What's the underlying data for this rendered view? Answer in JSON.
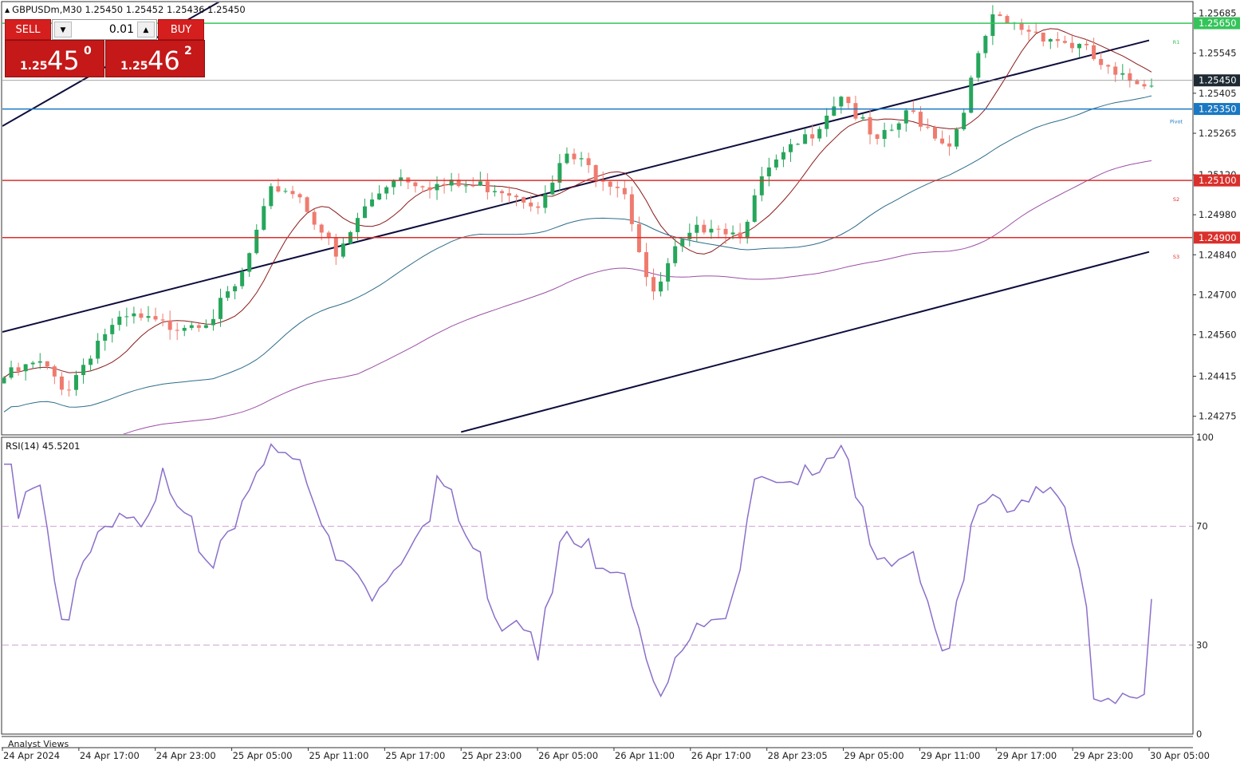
{
  "header": {
    "title": "GBPUSDm,M30  1.25450 1.25452 1.25436 1.25450"
  },
  "trade_panel": {
    "sell_label": "SELL",
    "buy_label": "BUY",
    "lot_value": "0.01",
    "sell_price": {
      "small": "1.25",
      "big": "45",
      "sup": "0"
    },
    "buy_price": {
      "small": "1.25",
      "big": "46",
      "sup": "2"
    }
  },
  "rsi_panel": {
    "label": "RSI(14) 45.5201"
  },
  "footer": {
    "analyst_label": "Analyst Views"
  },
  "colors": {
    "bull": "#26a65b",
    "bear": "#ef7b6f",
    "trend": "#0d0d3d",
    "resistance": "#35c45a",
    "pivot": "#1a78c2",
    "support": "#d9302c",
    "ma_fast": "#8b1a1a",
    "ma_mid": "#2d6c8a",
    "ma_slow": "#9b4fa5",
    "rsi": "#8b6fc9"
  },
  "chart_data": [
    {
      "type": "candlestick",
      "symbol": "GBPUSDm",
      "timeframe": "M30",
      "ylim": [
        1.2421,
        1.2572
      ],
      "y_ticks": [
        "1.25685",
        "1.25545",
        "1.25405",
        "1.25265",
        "1.25120",
        "1.24980",
        "1.24840",
        "1.24700",
        "1.24560",
        "1.24415",
        "1.24275"
      ],
      "x_ticks": [
        "24 Apr 2024",
        "24 Apr 17:00",
        "24 Apr 23:00",
        "25 Apr 05:00",
        "25 Apr 11:00",
        "25 Apr 17:00",
        "25 Apr 23:00",
        "26 Apr 05:00",
        "26 Apr 11:00",
        "26 Apr 17:00",
        "28 Apr 23:05",
        "29 Apr 05:00",
        "29 Apr 11:00",
        "29 Apr 17:00",
        "29 Apr 23:00",
        "30 Apr 05:00"
      ],
      "current_price": "1.25450",
      "levels": [
        {
          "name": "R1",
          "price": 1.2565,
          "label": "1.25650",
          "color": "#35c45a"
        },
        {
          "name": "Pivot",
          "price": 1.2535,
          "label": "1.25350",
          "color": "#1a78c2"
        },
        {
          "name": "S2",
          "price": 1.251,
          "label": "1.25100",
          "color": "#d9302c"
        },
        {
          "name": "S3",
          "price": 1.249,
          "label": "1.24900",
          "color": "#d9302c"
        }
      ],
      "trendlines": [
        {
          "x": [
            "24 Apr 2024",
            "25 Apr 05:00"
          ],
          "y": [
            1.2529,
            1.2575
          ]
        },
        {
          "x": [
            "24 Apr 2024",
            "30 Apr 05:00"
          ],
          "y": [
            1.2457,
            1.2559
          ]
        },
        {
          "x": [
            "25 Apr 23:00",
            "30 Apr 05:00"
          ],
          "y": [
            1.2422,
            1.2485
          ]
        }
      ],
      "close_series_anchors": [
        {
          "t": 0.0,
          "v": 1.2441
        },
        {
          "t": 0.03,
          "v": 1.2446
        },
        {
          "t": 0.055,
          "v": 1.2437
        },
        {
          "t": 0.085,
          "v": 1.2456
        },
        {
          "t": 0.11,
          "v": 1.2462
        },
        {
          "t": 0.14,
          "v": 1.2459
        },
        {
          "t": 0.18,
          "v": 1.2462
        },
        {
          "t": 0.205,
          "v": 1.2474
        },
        {
          "t": 0.235,
          "v": 1.2508
        },
        {
          "t": 0.255,
          "v": 1.2506
        },
        {
          "t": 0.275,
          "v": 1.2494
        },
        {
          "t": 0.29,
          "v": 1.2482
        },
        {
          "t": 0.31,
          "v": 1.2498
        },
        {
          "t": 0.34,
          "v": 1.2512
        },
        {
          "t": 0.38,
          "v": 1.2508
        },
        {
          "t": 0.43,
          "v": 1.2508
        },
        {
          "t": 0.47,
          "v": 1.2502
        },
        {
          "t": 0.49,
          "v": 1.2519
        },
        {
          "t": 0.51,
          "v": 1.2514
        },
        {
          "t": 0.54,
          "v": 1.2508
        },
        {
          "t": 0.565,
          "v": 1.2468
        },
        {
          "t": 0.585,
          "v": 1.2485
        },
        {
          "t": 0.615,
          "v": 1.2496
        },
        {
          "t": 0.64,
          "v": 1.2491
        },
        {
          "t": 0.665,
          "v": 1.2513
        },
        {
          "t": 0.7,
          "v": 1.2525
        },
        {
          "t": 0.73,
          "v": 1.2541
        },
        {
          "t": 0.76,
          "v": 1.2522
        },
        {
          "t": 0.79,
          "v": 1.2534
        },
        {
          "t": 0.825,
          "v": 1.2522
        },
        {
          "t": 0.86,
          "v": 1.2566
        },
        {
          "t": 0.9,
          "v": 1.2562
        },
        {
          "t": 0.94,
          "v": 1.2556
        },
        {
          "t": 0.97,
          "v": 1.2545
        },
        {
          "t": 1.0,
          "v": 1.2545
        }
      ]
    },
    {
      "type": "line",
      "title": "RSI(14) 45.5201",
      "ylim": [
        0,
        100
      ],
      "y_ticks": [
        "100",
        "70",
        "30",
        "0"
      ],
      "levels": [
        70,
        30
      ],
      "last_value": 45.5201
    }
  ]
}
